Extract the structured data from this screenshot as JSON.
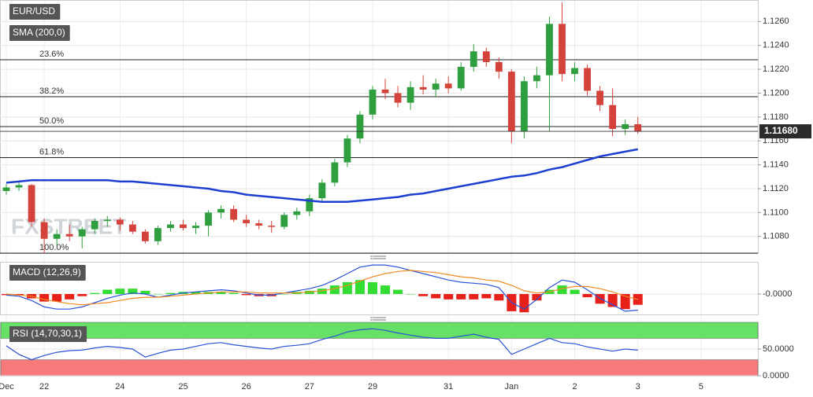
{
  "chart_data": [
    {
      "type": "candlestick",
      "title": "EUR/USD",
      "watermark": "FXSTREET",
      "open": [
        1.1118,
        1.1121,
        1.1123,
        1.1092,
        1.1078,
        1.1082,
        1.108,
        1.1086,
        1.1093,
        1.1094,
        1.109,
        1.1084,
        1.1076,
        1.1087,
        1.109,
        1.1087,
        1.1089,
        1.11,
        1.1103,
        1.1094,
        1.1091,
        1.1089,
        1.1088,
        1.1098,
        1.1101,
        1.1112,
        1.1125,
        1.1142,
        1.1162,
        1.1182,
        1.1203,
        1.12,
        1.1192,
        1.1205,
        1.1203,
        1.1208,
        1.1204,
        1.1222,
        1.1235,
        1.1226,
        1.1218,
        1.1168,
        1.121,
        1.1215,
        1.1258,
        1.1216,
        1.1221,
        1.1202,
        1.119,
        1.117,
        1.1174,
        null,
        null,
        null,
        null,
        null,
        null,
        null,
        null,
        null
      ],
      "high": [
        1.1124,
        1.1126,
        1.1124,
        1.1095,
        1.1086,
        1.109,
        1.1088,
        1.1095,
        1.1097,
        1.1096,
        1.1093,
        1.1086,
        1.1089,
        1.1093,
        1.1094,
        1.1092,
        1.1102,
        1.1106,
        1.1106,
        1.1098,
        1.1094,
        1.1093,
        1.11,
        1.1104,
        1.1115,
        1.1128,
        1.1145,
        1.1165,
        1.1185,
        1.1206,
        1.1212,
        1.1206,
        1.121,
        1.1215,
        1.1212,
        1.1214,
        1.1226,
        1.1241,
        1.1238,
        1.123,
        1.122,
        1.1214,
        1.1222,
        1.1264,
        1.1276,
        1.1226,
        1.1224,
        1.1206,
        1.1204,
        1.1178,
        1.118,
        null,
        null,
        null,
        null,
        null,
        null,
        null,
        null,
        null
      ],
      "low": [
        1.1115,
        1.1118,
        1.1088,
        1.1066,
        1.1072,
        1.1076,
        1.107,
        1.1082,
        1.1088,
        1.1085,
        1.1082,
        1.1074,
        1.1073,
        1.1084,
        1.1085,
        1.1082,
        1.108,
        1.1095,
        1.1092,
        1.1088,
        1.1086,
        1.1083,
        1.1086,
        1.1094,
        1.1097,
        1.1109,
        1.1122,
        1.1138,
        1.1158,
        1.1178,
        1.1195,
        1.1188,
        1.1186,
        1.1199,
        1.1197,
        1.12,
        1.1202,
        1.1218,
        1.1222,
        1.1212,
        1.1158,
        1.1162,
        1.1204,
        1.1168,
        1.121,
        1.121,
        1.1198,
        1.1185,
        1.1164,
        1.1165,
        1.1166,
        null,
        null,
        null,
        null,
        null,
        null,
        null,
        null,
        null
      ],
      "close": [
        1.1121,
        1.1123,
        1.1092,
        1.1078,
        1.1082,
        1.108,
        1.1086,
        1.1093,
        1.1094,
        1.109,
        1.1084,
        1.1076,
        1.1087,
        1.109,
        1.1087,
        1.1089,
        1.11,
        1.1103,
        1.1094,
        1.1091,
        1.1089,
        1.1088,
        1.1098,
        1.1101,
        1.1112,
        1.1125,
        1.1142,
        1.1162,
        1.1182,
        1.1203,
        1.12,
        1.1192,
        1.1205,
        1.1203,
        1.1208,
        1.1204,
        1.1222,
        1.1235,
        1.1226,
        1.1218,
        1.1168,
        1.121,
        1.1215,
        1.1258,
        1.1216,
        1.1221,
        1.1202,
        1.119,
        1.117,
        1.1174,
        1.1168,
        null,
        null,
        null,
        null,
        null,
        null,
        null,
        null,
        null
      ],
      "up_color": "#2f9e3f",
      "down_color": "#d4433b",
      "series": [
        {
          "name": "SMA (200,0)",
          "color": "#1d3fd0",
          "values": [
            1.1125,
            1.1126,
            1.1127,
            1.1127,
            1.1127,
            1.1127,
            1.1127,
            1.1127,
            1.1127,
            1.1126,
            1.1126,
            1.1125,
            1.1124,
            1.1123,
            1.1122,
            1.1121,
            1.112,
            1.1118,
            1.1117,
            1.1115,
            1.1114,
            1.1113,
            1.1112,
            1.1111,
            1.111,
            1.1109,
            1.1109,
            1.1109,
            1.111,
            1.1111,
            1.1112,
            1.1113,
            1.1115,
            1.1116,
            1.1118,
            1.112,
            1.1122,
            1.1124,
            1.1126,
            1.1128,
            1.113,
            1.1131,
            1.1133,
            1.1136,
            1.1138,
            1.1141,
            1.1144,
            1.1147,
            1.1149,
            1.1151,
            1.1153,
            null,
            null,
            null,
            null,
            null,
            null,
            null,
            null,
            null
          ]
        }
      ],
      "fib_levels": [
        {
          "label": "23.6%",
          "value": 1.1228
        },
        {
          "label": "38.2%",
          "value": 1.1197
        },
        {
          "label": "50.0%",
          "value": 1.1172
        },
        {
          "label": "61.8%",
          "value": 1.1146
        },
        {
          "label": "100.0%",
          "value": 1.1066
        }
      ],
      "last_price": {
        "value": 1.1168,
        "label": "1.11680"
      },
      "ylim": [
        1.1066,
        1.1278
      ],
      "yticks": [
        {
          "value": 1.108,
          "label": "1.1080"
        },
        {
          "value": 1.11,
          "label": "1.1100"
        },
        {
          "value": 1.112,
          "label": "1.1120"
        },
        {
          "value": 1.114,
          "label": "1.1140"
        },
        {
          "value": 1.116,
          "label": "1.1160"
        },
        {
          "value": 1.118,
          "label": "1.1180"
        },
        {
          "value": 1.12,
          "label": "1.1200"
        },
        {
          "value": 1.122,
          "label": "1.1220"
        },
        {
          "value": 1.124,
          "label": "1.1240"
        },
        {
          "value": 1.126,
          "label": "1.1260"
        }
      ],
      "grid": true
    },
    {
      "type": "macd",
      "title": "MACD (12,26,9)",
      "series": [
        {
          "color": "#2a52d6",
          "values": [
            -0.0001,
            -0.0002,
            -0.0006,
            -0.0012,
            -0.0014,
            -0.0014,
            -0.0012,
            -0.0008,
            -0.0004,
            -0.0001,
            0.0001,
            0.0,
            -0.0003,
            -0.0001,
            0.0001,
            0.0002,
            0.0003,
            0.0004,
            0.0003,
            0.0001,
            -0.0001,
            -0.0001,
            0.0001,
            0.0003,
            0.0005,
            0.0008,
            0.0013,
            0.0019,
            0.0025,
            0.0027,
            0.0027,
            0.0025,
            0.0022,
            0.0019,
            0.0016,
            0.0013,
            0.0011,
            0.001,
            0.0009,
            0.0006,
            -0.0008,
            -0.0014,
            -0.0005,
            0.0006,
            0.0013,
            0.0011,
            0.0004,
            -0.0004,
            -0.001,
            -0.0016,
            -0.0015,
            null,
            null,
            null,
            null,
            null,
            null,
            null,
            null,
            null
          ]
        },
        {
          "color": "#f08a24",
          "values": [
            0.0,
            -0.0001,
            -0.0002,
            -0.0005,
            -0.0007,
            -0.0009,
            -0.001,
            -0.0009,
            -0.0008,
            -0.0006,
            -0.0004,
            -0.0003,
            -0.0003,
            -0.0002,
            -0.0001,
            0.0,
            0.0001,
            0.0002,
            0.0002,
            0.0002,
            0.0001,
            0.0001,
            0.0001,
            0.0001,
            0.0002,
            0.0003,
            0.0005,
            0.0008,
            0.0012,
            0.0016,
            0.0019,
            0.0021,
            0.0022,
            0.0021,
            0.002,
            0.0018,
            0.0016,
            0.0015,
            0.0013,
            0.0012,
            0.0008,
            0.0003,
            0.0001,
            0.0002,
            0.0005,
            0.0007,
            0.0007,
            0.0005,
            0.0002,
            -0.0002,
            -0.0005,
            null,
            null,
            null,
            null,
            null,
            null,
            null,
            null,
            null
          ]
        }
      ],
      "histogram": {
        "positive_color": "#33dd33",
        "negative_color": "#e8201a",
        "values": [
          -0.0001,
          -0.0001,
          -0.0004,
          -0.0007,
          -0.0007,
          -0.0005,
          -0.0002,
          0.0001,
          0.0004,
          0.0005,
          0.0005,
          0.0003,
          0.0,
          0.0001,
          0.0002,
          0.0002,
          0.0002,
          0.0002,
          0.0001,
          -0.0001,
          -0.0002,
          -0.0002,
          0.0,
          0.0002,
          0.0003,
          0.0005,
          0.0008,
          0.0011,
          0.0013,
          0.0011,
          0.0008,
          0.0004,
          0.0,
          -0.0002,
          -0.0004,
          -0.0005,
          -0.0005,
          -0.0005,
          -0.0004,
          -0.0006,
          -0.0016,
          -0.0017,
          -0.0006,
          0.0004,
          0.0008,
          0.0004,
          -0.0003,
          -0.0009,
          -0.0012,
          -0.0014,
          -0.001,
          null,
          null,
          null,
          null,
          null,
          null,
          null,
          null,
          null
        ]
      },
      "ylim": [
        -0.0019,
        0.003
      ],
      "yticks": [
        {
          "value": 0,
          "label": "-0.0000"
        }
      ],
      "grid": true
    },
    {
      "type": "line",
      "title": "RSI (14,70,30,1)",
      "categories": [
        "Dec",
        null,
        null,
        "22",
        null,
        null,
        null,
        null,
        null,
        "24",
        null,
        null,
        null,
        null,
        "25",
        null,
        null,
        null,
        null,
        "26",
        null,
        null,
        null,
        null,
        "27",
        null,
        null,
        null,
        null,
        "29",
        null,
        null,
        null,
        null,
        null,
        "31",
        null,
        null,
        null,
        null,
        "Jan",
        null,
        null,
        null,
        null,
        "2",
        null,
        null,
        null,
        null,
        "3",
        null,
        null,
        null,
        null,
        "5",
        null,
        null,
        null,
        null
      ],
      "series": [
        {
          "color": "#2a52d6",
          "values": [
            56,
            40,
            30,
            38,
            44,
            47,
            48,
            52,
            55,
            53,
            50,
            35,
            42,
            48,
            50,
            55,
            60,
            62,
            58,
            55,
            52,
            50,
            55,
            57,
            60,
            68,
            74,
            82,
            86,
            88,
            85,
            80,
            76,
            72,
            70,
            70,
            74,
            78,
            72,
            68,
            40,
            50,
            60,
            70,
            62,
            60,
            54,
            50,
            46,
            50,
            48,
            null,
            null,
            null,
            null,
            null,
            null,
            null,
            null,
            null
          ]
        }
      ],
      "bands": [
        {
          "from": 70,
          "to": 100,
          "color": "#66e066"
        },
        {
          "from": 0,
          "to": 30,
          "color": "#f67a7a"
        }
      ],
      "ylim": [
        0,
        100
      ],
      "yticks": [
        {
          "value": 50,
          "label": "50.0000"
        },
        {
          "value": 0,
          "label": "0.0000"
        }
      ],
      "grid": true
    }
  ]
}
